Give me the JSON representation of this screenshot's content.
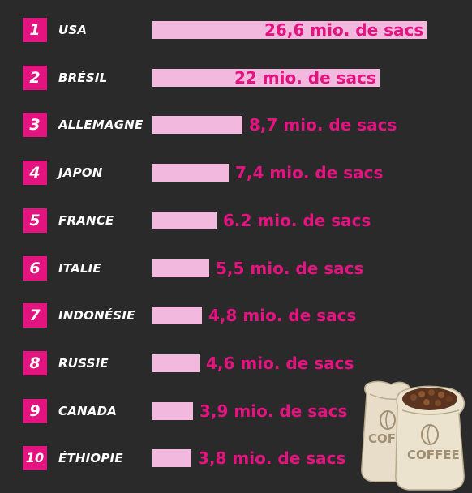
{
  "colors": {
    "background": "#2b2a2b",
    "rank_box": "#e3137f",
    "bar": "#f2b8dd",
    "value_text": "#e3137f",
    "label_text": "#ffffff"
  },
  "chart_data": {
    "type": "bar",
    "orientation": "horizontal",
    "title": "",
    "xlabel": "",
    "ylabel": "",
    "unit": "mio. de sacs",
    "categories": [
      "USA",
      "BRÉSIL",
      "ALLEMAGNE",
      "JAPON",
      "FRANCE",
      "ITALIE",
      "INDONÉSIE",
      "RUSSIE",
      "CANADA",
      "ÉTHIOPIE"
    ],
    "values": [
      26.6,
      22,
      8.7,
      7.4,
      6.2,
      5.5,
      4.8,
      4.6,
      3.9,
      3.8
    ],
    "value_labels": [
      "26,6 mio. de sacs",
      "22 mio. de sacs",
      "8,7 mio. de sacs",
      "7,4 mio. de sacs",
      "6.2 mio. de sacs",
      "5,5 mio. de sacs",
      "4,8 mio. de sacs",
      "4,6 mio. de sacs",
      "3,9 mio. de sacs",
      "3,8 mio. de sacs"
    ],
    "ranks": [
      "1",
      "2",
      "3",
      "4",
      "5",
      "6",
      "7",
      "8",
      "9",
      "10"
    ],
    "grid": false,
    "legend": "none"
  },
  "illustration": {
    "icon": "coffee-bags-icon",
    "bag_label": "COFFEE"
  }
}
